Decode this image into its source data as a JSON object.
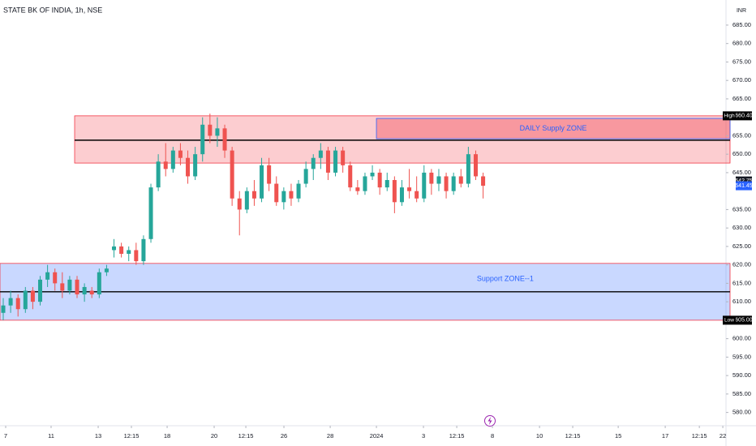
{
  "chart_data": {
    "type": "candlestick",
    "title": "STATE BK OF INDIA, 1h, NSE",
    "currency": "INR",
    "up_color": "#26a69a",
    "down_color": "#ef5350",
    "xlim": [
      -0.44,
      97.9
    ],
    "ylim": [
      576.4,
      691.8
    ],
    "xticks": [
      {
        "value": 0.33,
        "label": "7"
      },
      {
        "value": 6.48,
        "label": "11"
      },
      {
        "value": 12.86,
        "label": "13"
      },
      {
        "value": 17.36,
        "label": "12:15"
      },
      {
        "value": 22.2,
        "label": "18"
      },
      {
        "value": 28.57,
        "label": "20"
      },
      {
        "value": 32.86,
        "label": "12:15"
      },
      {
        "value": 38.02,
        "label": "26"
      },
      {
        "value": 44.29,
        "label": "28"
      },
      {
        "value": 50.55,
        "label": "2024"
      },
      {
        "value": 56.92,
        "label": "3"
      },
      {
        "value": 61.43,
        "label": "12:15"
      },
      {
        "value": 66.26,
        "label": "8"
      },
      {
        "value": 72.64,
        "label": "10"
      },
      {
        "value": 77.14,
        "label": "12:15"
      },
      {
        "value": 83.3,
        "label": "15"
      },
      {
        "value": 89.67,
        "label": "17"
      },
      {
        "value": 94.29,
        "label": "12:15"
      },
      {
        "value": 97.47,
        "label": "22"
      }
    ],
    "yticks": [
      {
        "value": 685,
        "label": "685.00"
      },
      {
        "value": 680,
        "label": "680.00"
      },
      {
        "value": 675,
        "label": "675.00"
      },
      {
        "value": 670,
        "label": "670.00"
      },
      {
        "value": 665,
        "label": "665.00"
      },
      {
        "value": 655,
        "label": "655.00"
      },
      {
        "value": 650,
        "label": "650.00"
      },
      {
        "value": 645,
        "label": "645.00"
      },
      {
        "value": 635,
        "label": "635.00"
      },
      {
        "value": 630,
        "label": "630.00"
      },
      {
        "value": 625,
        "label": "625.00"
      },
      {
        "value": 620,
        "label": "620.00"
      },
      {
        "value": 615,
        "label": "615.00"
      },
      {
        "value": 610,
        "label": "610.00"
      },
      {
        "value": 600,
        "label": "600.00"
      },
      {
        "value": 595,
        "label": "595.00"
      },
      {
        "value": 590,
        "label": "590.00"
      },
      {
        "value": 585,
        "label": "585.00"
      },
      {
        "value": 580,
        "label": "580.00"
      }
    ],
    "ohlc": [
      [
        607,
        611,
        605,
        609
      ],
      [
        609,
        613,
        607,
        611
      ],
      [
        611,
        612,
        606,
        608
      ],
      [
        608,
        614,
        607,
        613
      ],
      [
        613,
        614,
        608,
        610
      ],
      [
        610,
        617,
        609,
        616
      ],
      [
        616,
        620,
        614,
        618
      ],
      [
        618,
        619,
        613,
        615
      ],
      [
        615,
        618,
        611,
        613
      ],
      [
        613,
        617,
        612,
        616
      ],
      [
        616,
        617,
        611,
        612
      ],
      [
        612,
        615,
        610,
        614
      ],
      [
        613,
        614,
        611,
        612
      ],
      [
        612,
        619,
        611,
        618
      ],
      [
        618,
        620,
        617,
        619
      ],
      [
        624,
        627,
        622,
        625
      ],
      [
        625,
        626,
        622,
        623
      ],
      [
        623,
        625,
        621,
        624
      ],
      [
        624,
        626,
        620,
        621
      ],
      [
        621,
        628,
        620,
        627
      ],
      [
        627,
        642,
        626,
        641
      ],
      [
        641,
        650,
        640,
        648
      ],
      [
        648,
        653,
        644,
        646
      ],
      [
        646,
        652,
        645,
        651
      ],
      [
        651,
        653,
        647,
        649
      ],
      [
        649,
        651,
        642,
        644
      ],
      [
        644,
        652,
        643,
        650
      ],
      [
        650,
        660,
        648,
        658
      ],
      [
        658,
        661,
        653,
        655
      ],
      [
        655,
        660,
        652,
        657
      ],
      [
        657,
        658,
        649,
        651
      ],
      [
        651,
        652,
        636,
        638
      ],
      [
        638,
        640,
        628,
        635
      ],
      [
        635,
        641,
        634,
        640
      ],
      [
        640,
        643,
        636,
        638
      ],
      [
        638,
        649,
        637,
        647
      ],
      [
        647,
        649,
        640,
        642
      ],
      [
        642,
        644,
        636,
        637
      ],
      [
        637,
        641,
        635,
        640
      ],
      [
        640,
        642,
        636,
        638
      ],
      [
        638,
        643,
        637,
        642
      ],
      [
        642,
        648,
        641,
        646
      ],
      [
        646,
        650,
        643,
        649
      ],
      [
        649,
        653,
        646,
        651
      ],
      [
        651,
        652,
        643,
        645
      ],
      [
        645,
        652,
        644,
        651
      ],
      [
        651,
        652,
        645,
        647
      ],
      [
        647,
        648,
        640,
        641
      ],
      [
        641,
        643,
        639,
        640
      ],
      [
        640,
        645,
        639,
        644
      ],
      [
        644,
        647,
        643,
        645
      ],
      [
        645,
        646,
        639,
        641
      ],
      [
        641,
        645,
        640,
        643
      ],
      [
        643,
        644,
        634,
        637
      ],
      [
        637,
        643,
        636,
        641
      ],
      [
        641,
        646,
        638,
        640
      ],
      [
        640,
        644,
        637,
        638
      ],
      [
        638,
        647,
        637,
        645
      ],
      [
        645,
        646,
        639,
        642
      ],
      [
        642,
        646,
        640,
        644
      ],
      [
        644,
        645,
        638,
        640
      ],
      [
        640,
        645,
        639,
        644
      ],
      [
        644,
        646,
        641,
        642
      ],
      [
        642,
        652,
        641,
        650
      ],
      [
        650,
        651,
        643,
        644
      ],
      [
        644,
        645,
        638,
        641.45
      ]
    ],
    "zones": [
      {
        "top": 660.4,
        "bottom": 647.6,
        "mid": 653.8,
        "x_start": 9.67,
        "fill": "rgba(242,54,69,0.25)",
        "border": "#f23645"
      },
      {
        "top": 620.4,
        "bottom": 605,
        "mid": 612.7,
        "x_start": -0.44,
        "fill": "rgba(41,98,255,0.25)",
        "border": "#f23645"
      }
    ],
    "annotations": [
      {
        "text": "DAILY Supply  ZONE",
        "top": 659.7,
        "bottom": 654.2,
        "x_start": 50.55,
        "fill": "rgba(242,54,69,0.35)",
        "border": "#2962ff"
      },
      {
        "text": "Support  ZONE--1",
        "price": 616.2,
        "x": 68
      }
    ],
    "price_badges": [
      {
        "tag": "High",
        "value": 660.4,
        "label": "660.40",
        "color": "#000000"
      },
      {
        "value": 642.75,
        "label": "642.75",
        "color": "#131722"
      },
      {
        "value": 641.45,
        "label": "641.45",
        "color": "#2962ff"
      },
      {
        "tag": "Low",
        "value": 605,
        "label": "605.00",
        "color": "#000000"
      }
    ]
  }
}
